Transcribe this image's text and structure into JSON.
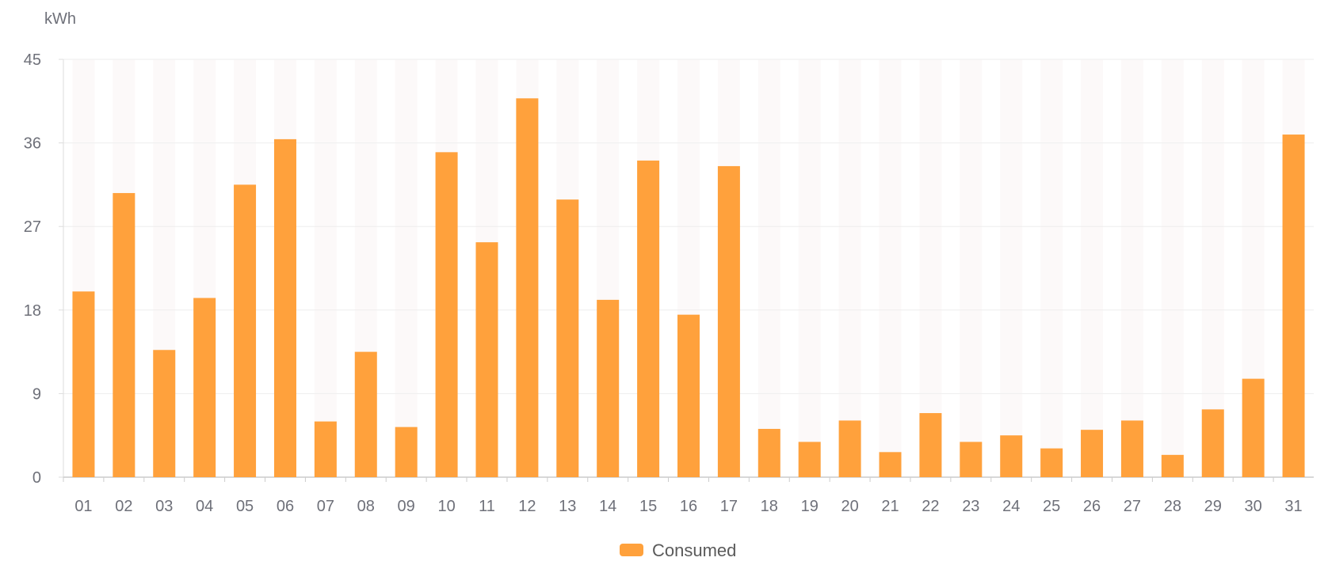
{
  "chart_data": {
    "type": "bar",
    "ylabel": "kWh",
    "ylim": [
      0,
      45
    ],
    "yticks": [
      0,
      9,
      18,
      27,
      36,
      45
    ],
    "categories": [
      "01",
      "02",
      "03",
      "04",
      "05",
      "06",
      "07",
      "08",
      "09",
      "10",
      "11",
      "12",
      "13",
      "14",
      "15",
      "16",
      "17",
      "18",
      "19",
      "20",
      "21",
      "22",
      "23",
      "24",
      "25",
      "26",
      "27",
      "28",
      "29",
      "30",
      "31"
    ],
    "series": [
      {
        "name": "Consumed",
        "color": "#ffa13c",
        "values": [
          20.0,
          30.6,
          13.7,
          19.3,
          31.5,
          36.4,
          6.0,
          13.5,
          5.4,
          35.0,
          25.3,
          40.8,
          29.9,
          19.1,
          34.1,
          17.5,
          33.5,
          5.2,
          3.8,
          6.1,
          2.7,
          6.9,
          3.8,
          4.5,
          3.1,
          5.1,
          6.1,
          2.4,
          7.3,
          10.6,
          36.9
        ]
      }
    ],
    "legend": "bottom-center",
    "grid": true,
    "background_bars": true
  }
}
